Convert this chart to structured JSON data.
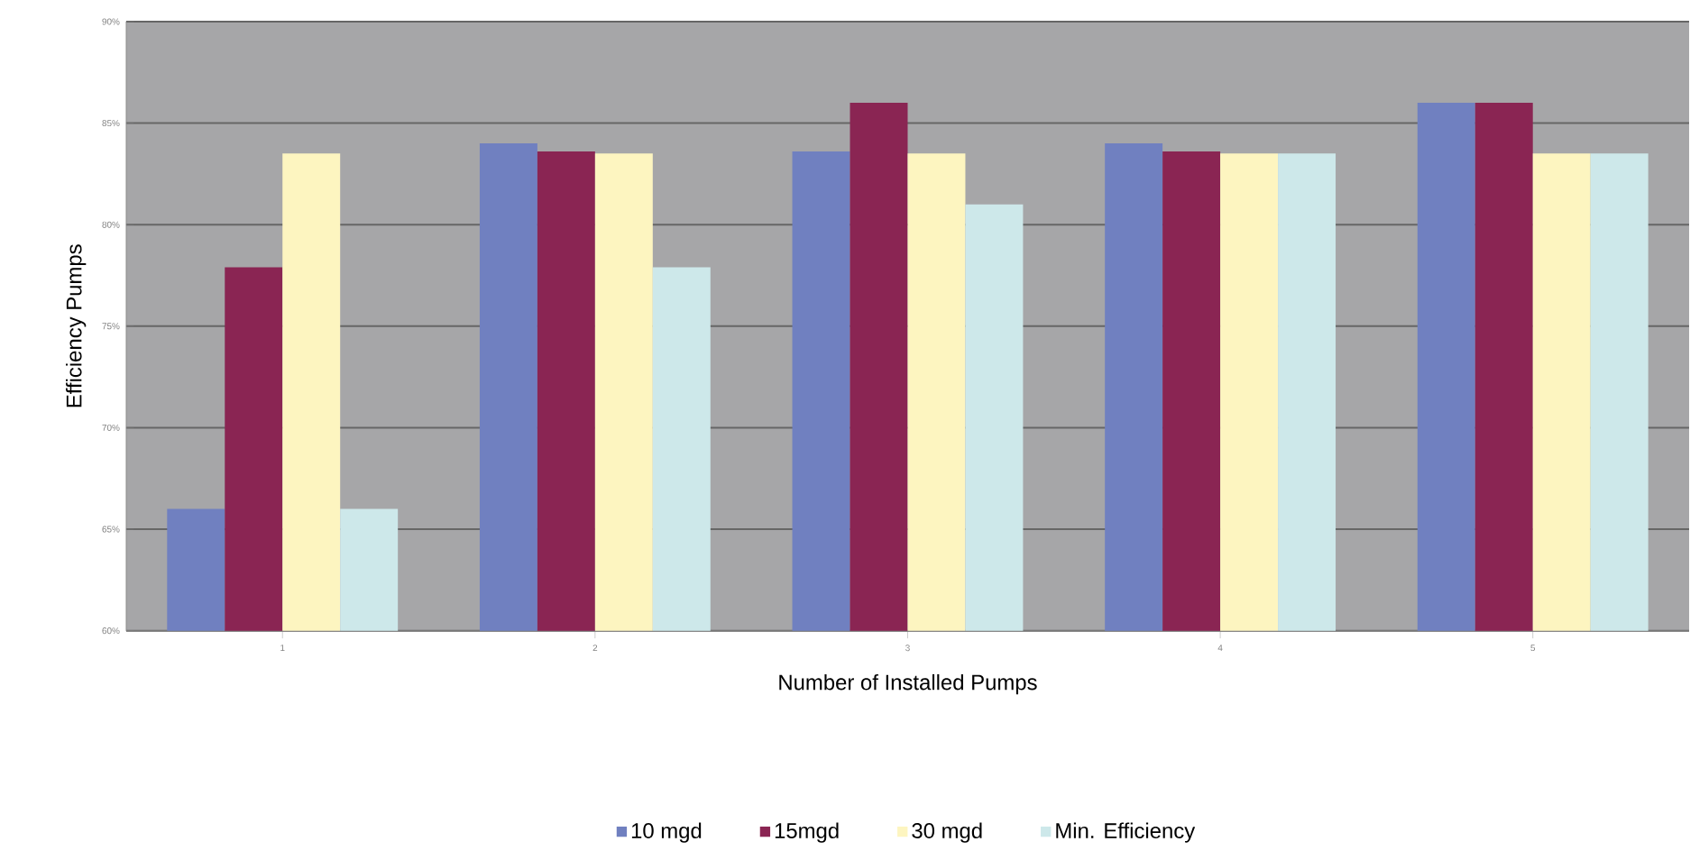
{
  "chart_data": {
    "type": "bar",
    "xlabel": "Number of Installed Pumps",
    "ylabel": "Efficiency Pumps",
    "categories": [
      "1",
      "2",
      "3",
      "4",
      "5"
    ],
    "series": [
      {
        "name": "10 mgd",
        "color": "#7080c0",
        "values": [
          66,
          84,
          83.6,
          84,
          86
        ]
      },
      {
        "name": "15mgd",
        "color": "#8a2553",
        "values": [
          77.9,
          83.6,
          86,
          83.6,
          86
        ]
      },
      {
        "name": "30 mgd",
        "color": "#fdf5c0",
        "values": [
          83.5,
          83.5,
          83.5,
          83.5,
          83.5
        ]
      },
      {
        "name": "Min. Efficiency",
        "color": "#cde8ea",
        "values": [
          66,
          77.9,
          81,
          83.5,
          83.5
        ]
      }
    ],
    "ylim": [
      60,
      90
    ],
    "yticks": [
      {
        "value": 60,
        "label": "60%"
      },
      {
        "value": 65,
        "label": "65%"
      },
      {
        "value": 70,
        "label": "70%"
      },
      {
        "value": 75,
        "label": "75%"
      },
      {
        "value": 80,
        "label": "80%"
      },
      {
        "value": 85,
        "label": "85%"
      },
      {
        "value": 90,
        "label": "90%"
      }
    ],
    "grid": "y",
    "legend": "bottom"
  }
}
